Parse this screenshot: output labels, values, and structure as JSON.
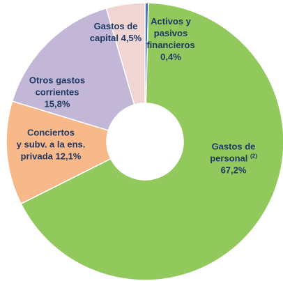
{
  "chart_data": {
    "type": "donut",
    "categories": [
      "Activos y\npasivos\nfinancieros",
      "Gastos de\npersonal",
      "Conciertos\ny subv. a la ens.\nprivada",
      "Otros gastos\ncorrientes",
      "Gastos de\ncapital"
    ],
    "category_notes": [
      null,
      "(2)",
      null,
      null,
      null
    ],
    "values": [
      0.4,
      67.2,
      12.1,
      15.8,
      4.5
    ],
    "value_labels": [
      "0,4%",
      "67,2%",
      "12,1%",
      "15,8%",
      "4,5%"
    ],
    "colors": [
      "#4472c4",
      "#92c95c",
      "#f8b98a",
      "#c2b7d6",
      "#f0d5d2"
    ]
  }
}
